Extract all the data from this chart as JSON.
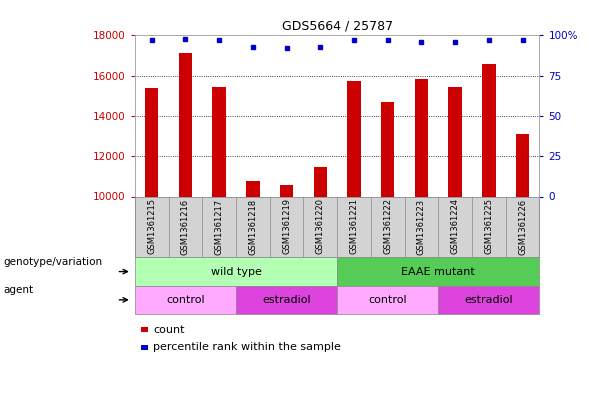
{
  "title": "GDS5664 / 25787",
  "samples": [
    "GSM1361215",
    "GSM1361216",
    "GSM1361217",
    "GSM1361218",
    "GSM1361219",
    "GSM1361220",
    "GSM1361221",
    "GSM1361222",
    "GSM1361223",
    "GSM1361224",
    "GSM1361225",
    "GSM1361226"
  ],
  "counts": [
    15400,
    17100,
    15450,
    10750,
    10550,
    11450,
    15750,
    14700,
    15850,
    15450,
    16600,
    13100
  ],
  "percentiles": [
    97,
    98,
    97,
    93,
    92,
    93,
    97,
    97,
    96,
    96,
    97,
    97
  ],
  "bar_color": "#cc0000",
  "dot_color": "#0000cc",
  "ylim_left": [
    10000,
    18000
  ],
  "ylim_right": [
    0,
    100
  ],
  "yticks_left": [
    10000,
    12000,
    14000,
    16000,
    18000
  ],
  "yticks_right": [
    0,
    25,
    50,
    75,
    100
  ],
  "plot_bg_color": "#ffffff",
  "sample_bg_color": "#d3d3d3",
  "genotype_groups": [
    {
      "name": "wild type",
      "start": 0,
      "end": 6,
      "color": "#b3ffb3"
    },
    {
      "name": "EAAE mutant",
      "start": 6,
      "end": 12,
      "color": "#55cc55"
    }
  ],
  "agent_groups": [
    {
      "name": "control",
      "start": 0,
      "end": 3,
      "color": "#ffaaff"
    },
    {
      "name": "estradiol",
      "start": 3,
      "end": 6,
      "color": "#dd44dd"
    },
    {
      "name": "control",
      "start": 6,
      "end": 9,
      "color": "#ffaaff"
    },
    {
      "name": "estradiol",
      "start": 9,
      "end": 12,
      "color": "#dd44dd"
    }
  ],
  "genotype_label": "genotype/variation",
  "agent_label": "agent",
  "legend_count_label": "count",
  "legend_percentile_label": "percentile rank within the sample",
  "legend_count_color": "#cc0000",
  "legend_percentile_color": "#0000cc",
  "tick_color_left": "#cc0000",
  "tick_color_right": "#0000cc",
  "grid_color": "#000000",
  "bar_width": 0.4
}
